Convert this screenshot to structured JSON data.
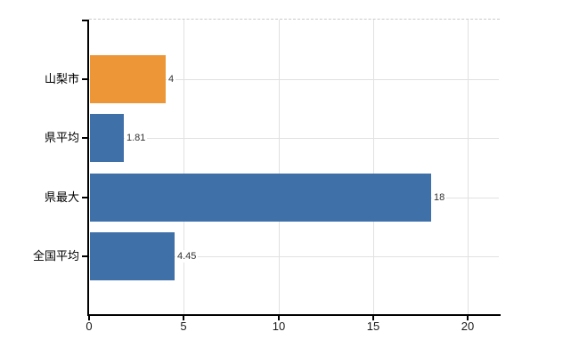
{
  "chart_data": {
    "type": "bar",
    "orientation": "horizontal",
    "title": "",
    "xlabel": "",
    "ylabel": "",
    "categories": [
      "山梨市",
      "県平均",
      "県最大",
      "全国平均"
    ],
    "values": [
      4,
      1.81,
      18,
      4.45
    ],
    "value_labels": [
      "4",
      "1.81",
      "18",
      "4.45"
    ],
    "bar_colors": [
      "#ED9638",
      "#4070A8",
      "#4070A8",
      "#4070A8"
    ],
    "x_ticks": [
      0,
      5,
      10,
      15,
      20
    ],
    "x_tick_labels": [
      "0",
      "5",
      "10",
      "15",
      "20"
    ],
    "xlim": [
      0,
      21.6
    ],
    "grid": true,
    "legend": "none"
  },
  "colors": {
    "bar_orange": "#ED9638",
    "bar_blue": "#4070A8",
    "gridline": "#E1E1E1",
    "top_border": "#C9C9C9",
    "axis": "#000000",
    "text": "#1A1A1A",
    "background": "#FFFFFF"
  }
}
